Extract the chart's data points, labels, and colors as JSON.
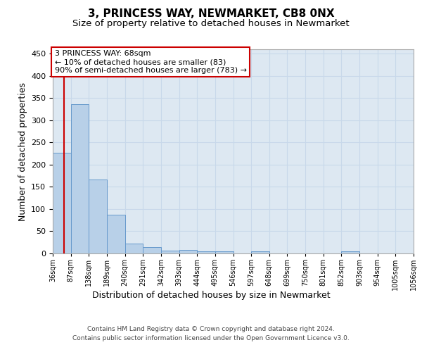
{
  "title": "3, PRINCESS WAY, NEWMARKET, CB8 0NX",
  "subtitle": "Size of property relative to detached houses in Newmarket",
  "xlabel": "Distribution of detached houses by size in Newmarket",
  "ylabel": "Number of detached properties",
  "bar_values": [
    227,
    337,
    167,
    88,
    22,
    15,
    6,
    8,
    5,
    4,
    0,
    5,
    0,
    0,
    0,
    0,
    4,
    0,
    0,
    0
  ],
  "bar_labels": [
    "36sqm",
    "87sqm",
    "138sqm",
    "189sqm",
    "240sqm",
    "291sqm",
    "342sqm",
    "393sqm",
    "444sqm",
    "495sqm",
    "546sqm",
    "597sqm",
    "648sqm",
    "699sqm",
    "750sqm",
    "801sqm",
    "852sqm",
    "903sqm",
    "954sqm",
    "1005sqm",
    "1056sqm"
  ],
  "bar_color": "#b8d0e8",
  "bar_edge_color": "#6699cc",
  "grid_color": "#c8d8ea",
  "bg_color": "#dde8f2",
  "annotation_text": "3 PRINCESS WAY: 68sqm\n← 10% of detached houses are smaller (83)\n90% of semi-detached houses are larger (783) →",
  "footer_line1": "Contains HM Land Registry data © Crown copyright and database right 2024.",
  "footer_line2": "Contains public sector information licensed under the Open Government Licence v3.0.",
  "ylim": [
    0,
    460
  ],
  "title_fontsize": 11,
  "subtitle_fontsize": 9.5
}
